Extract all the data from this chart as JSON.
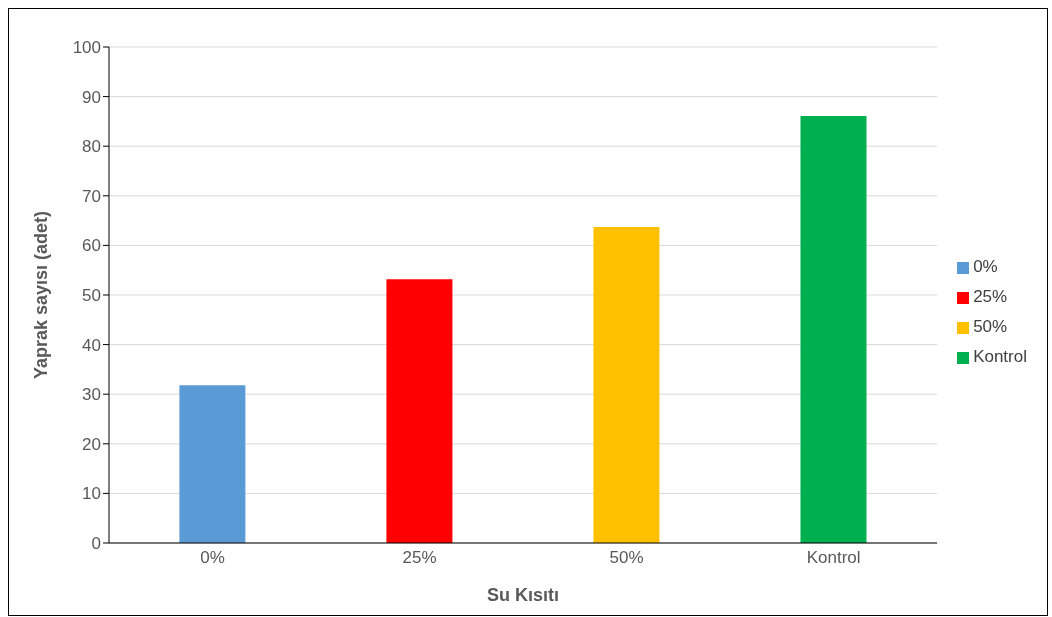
{
  "chart_data": {
    "type": "bar",
    "xlabel": "Su Kısıtı",
    "ylabel": "Yaprak sayısı (adet)",
    "categories": [
      "0%",
      "25%",
      "50%",
      "Kontrol"
    ],
    "series": [
      {
        "name": "0%",
        "color": "#5b9bd5",
        "values": [
          31.8,
          null,
          null,
          null
        ]
      },
      {
        "name": "25%",
        "color": "#ff0000",
        "values": [
          null,
          53.2,
          null,
          null
        ]
      },
      {
        "name": "50%",
        "color": "#ffc000",
        "values": [
          null,
          null,
          63.7,
          null
        ]
      },
      {
        "name": "Kontrol",
        "color": "#00b050",
        "values": [
          null,
          null,
          null,
          86.1
        ]
      }
    ],
    "ylim": [
      0,
      100
    ],
    "yticks": [
      0,
      10,
      20,
      30,
      40,
      50,
      60,
      70,
      80,
      90,
      100
    ],
    "grid": "y",
    "legend": "right"
  }
}
